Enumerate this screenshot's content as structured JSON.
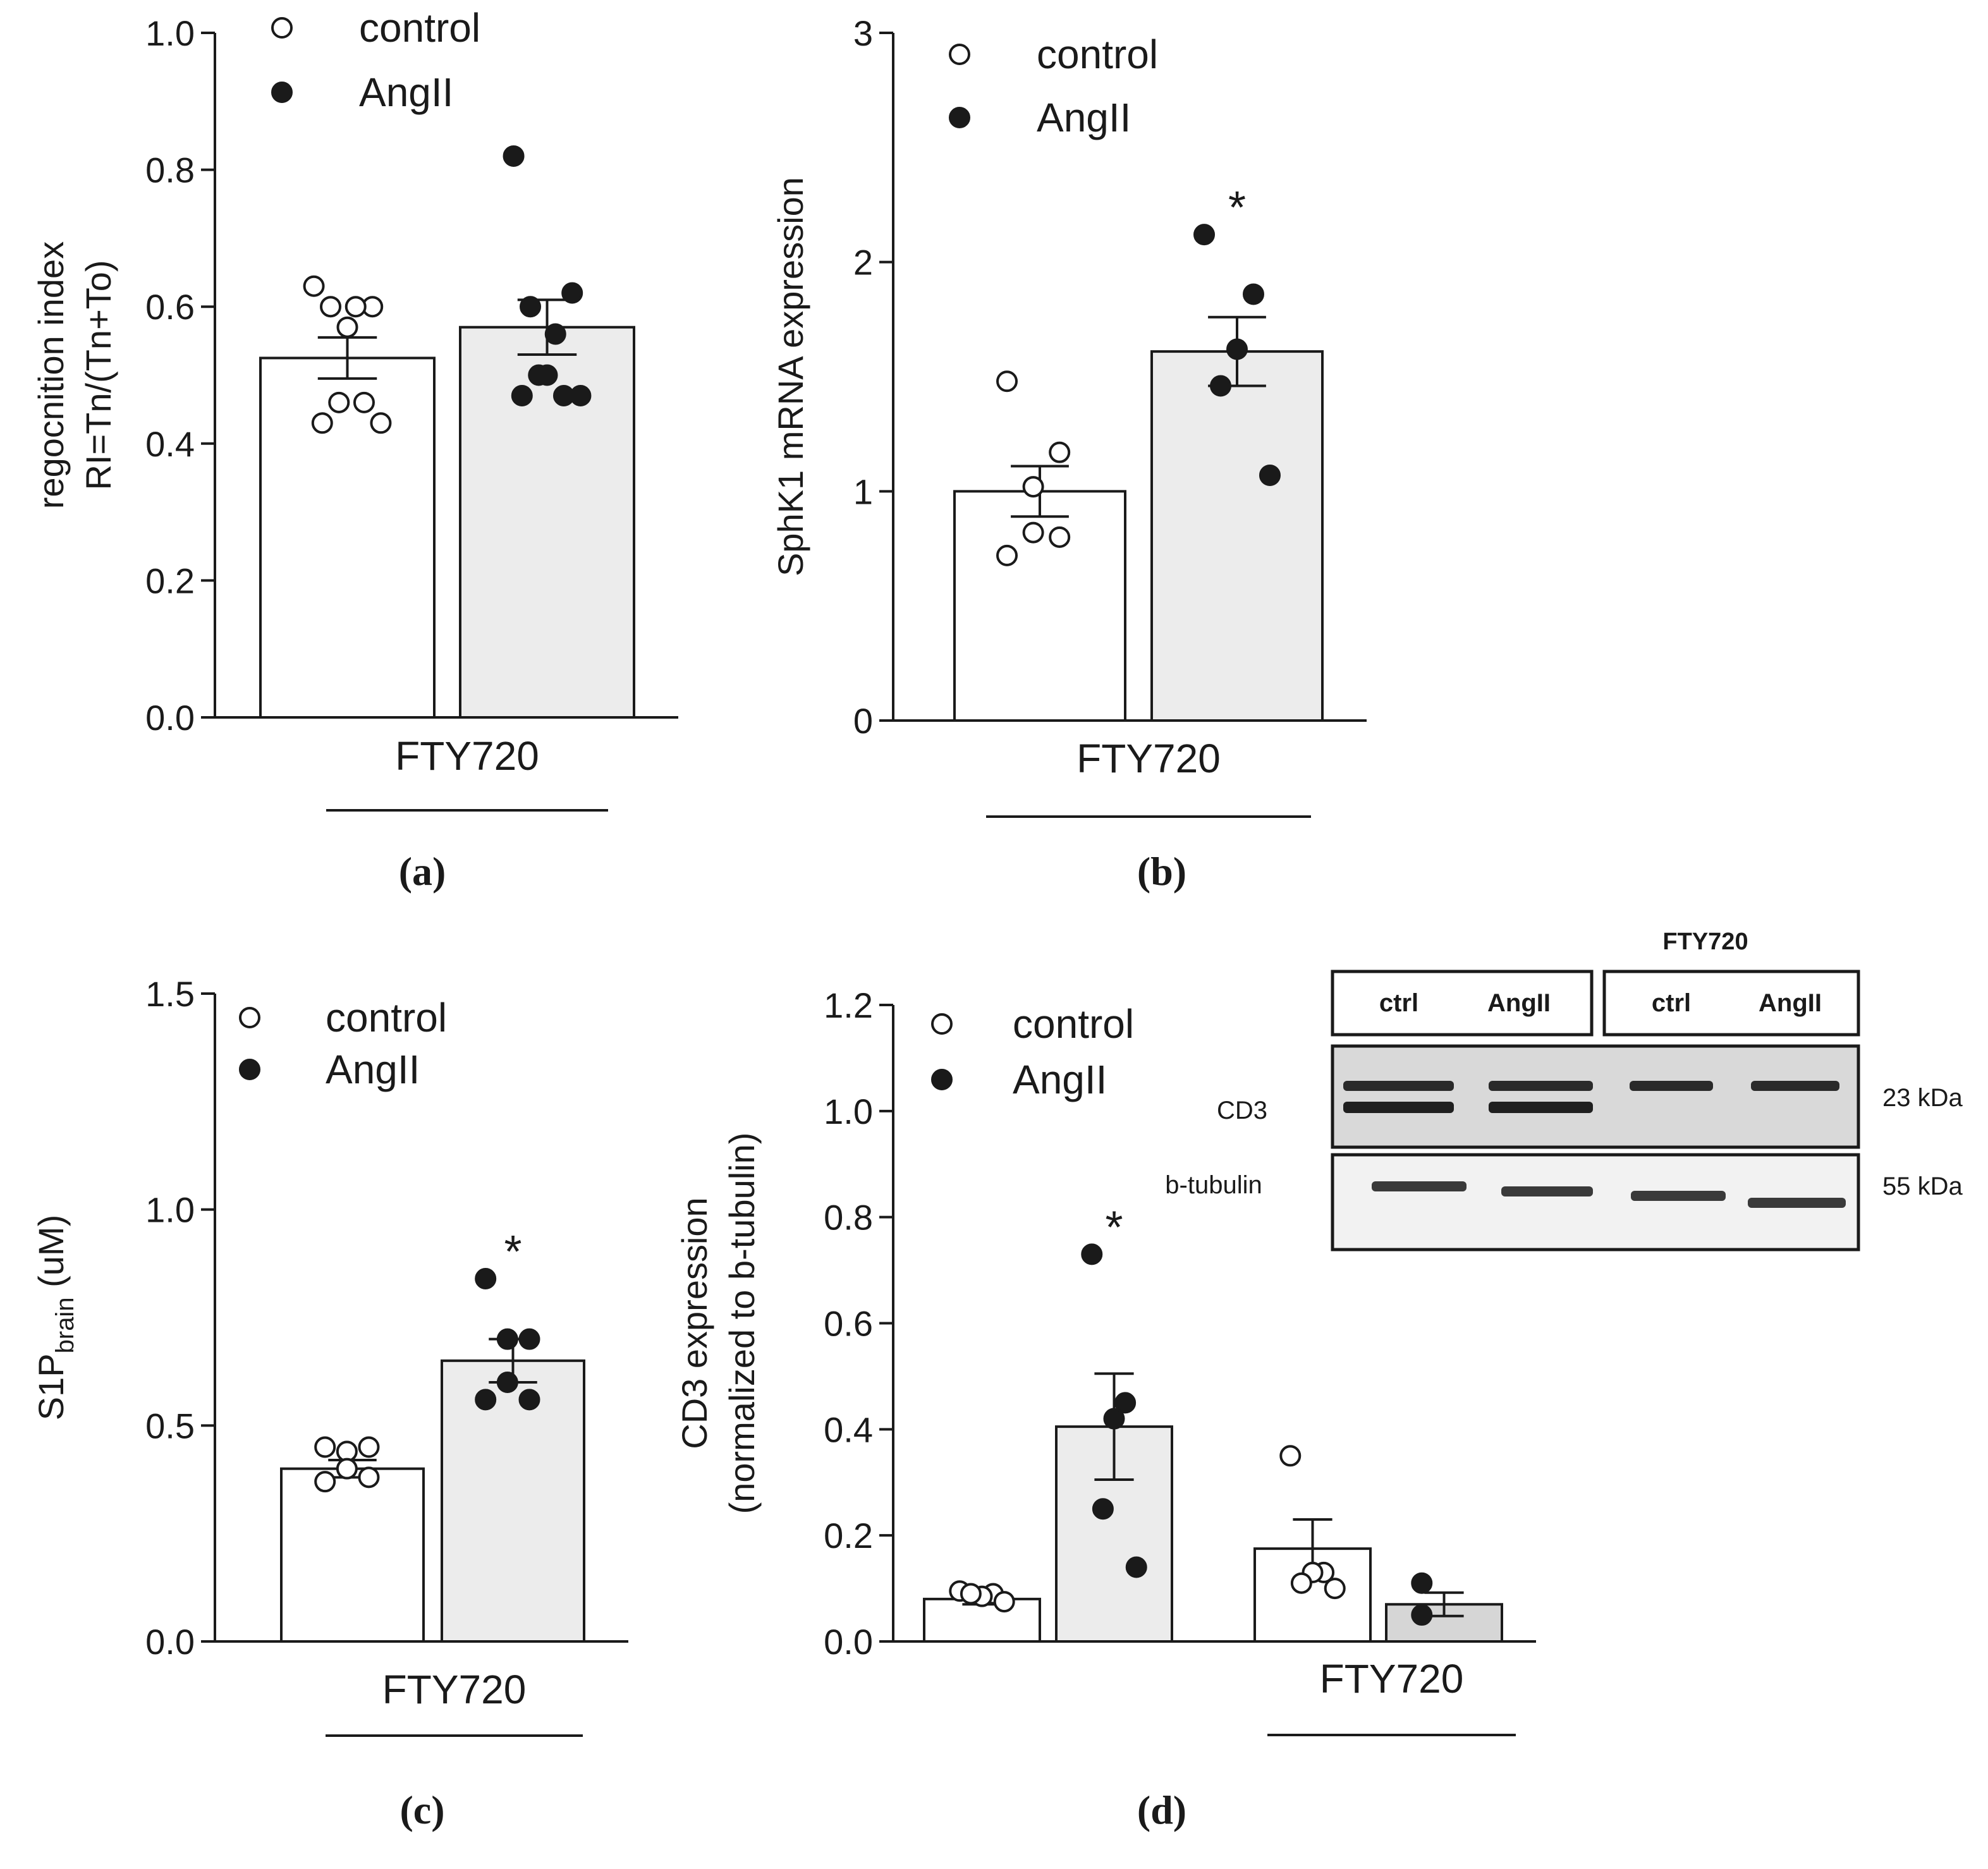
{
  "colors": {
    "ink": "#1a1a1a",
    "control_fill": "#ffffff",
    "angii_fill": "#ececec",
    "angii_fill_d2": "#d6d6d6",
    "point_control": "#ffffff",
    "point_angii": "#1a1a1a"
  },
  "chart_data": [
    {
      "id": "a",
      "type": "bar",
      "panel_label": "(a)",
      "ylabel_lines": [
        "regocnition index",
        "RI=Tn/(Tn+To)"
      ],
      "ylim": [
        0,
        1.0
      ],
      "yticks": [
        "0.0",
        "0.2",
        "0.4",
        "0.6",
        "0.8",
        "1.0"
      ],
      "ytick_values": [
        0,
        0.2,
        0.4,
        0.6,
        0.8,
        1.0
      ],
      "group_label": "FTY720",
      "legend": [
        {
          "label": "control",
          "marker": "open-circle"
        },
        {
          "label": "AngII",
          "marker": "filled-circle"
        }
      ],
      "legend_position": "top-left",
      "bars": [
        {
          "group": "control",
          "mean": 0.525,
          "sem": 0.03,
          "points": [
            0.63,
            0.6,
            0.6,
            0.6,
            0.57,
            0.46,
            0.46,
            0.43,
            0.43
          ],
          "significant": false
        },
        {
          "group": "AngII",
          "mean": 0.57,
          "sem": 0.04,
          "points": [
            0.82,
            0.62,
            0.6,
            0.56,
            0.5,
            0.5,
            0.47,
            0.47,
            0.47
          ],
          "significant": false
        }
      ]
    },
    {
      "id": "b",
      "type": "bar",
      "panel_label": "(b)",
      "ylabel_lines": [
        "SphK1 mRNA expression"
      ],
      "ylim": [
        0,
        3
      ],
      "yticks": [
        "0",
        "1",
        "2",
        "3"
      ],
      "ytick_values": [
        0,
        1,
        2,
        3
      ],
      "group_label": "FTY720",
      "legend": [
        {
          "label": "control",
          "marker": "open-circle"
        },
        {
          "label": "AngII",
          "marker": "filled-circle"
        }
      ],
      "legend_position": "top-left",
      "bars": [
        {
          "group": "control",
          "mean": 1.0,
          "sem": 0.11,
          "points": [
            1.48,
            1.17,
            1.02,
            0.82,
            0.8,
            0.72
          ],
          "significant": false
        },
        {
          "group": "AngII",
          "mean": 1.61,
          "sem": 0.15,
          "points": [
            2.12,
            1.86,
            1.62,
            1.46,
            1.07
          ],
          "significant": true
        }
      ]
    },
    {
      "id": "c",
      "type": "bar",
      "panel_label": "(c)",
      "ylabel": "S1P",
      "ylabel_sub": "brain",
      "ylabel_suffix": " (uM)",
      "ylim": [
        0,
        1.5
      ],
      "yticks": [
        "0.0",
        "0.5",
        "1.0",
        "1.5"
      ],
      "ytick_values": [
        0,
        0.5,
        1.0,
        1.5
      ],
      "group_label": "FTY720",
      "legend": [
        {
          "label": "control",
          "marker": "open-circle"
        },
        {
          "label": "AngII",
          "marker": "filled-circle"
        }
      ],
      "legend_position": "top-left",
      "bars": [
        {
          "group": "control",
          "mean": 0.4,
          "sem": 0.02,
          "points": [
            0.45,
            0.45,
            0.44,
            0.4,
            0.38,
            0.37
          ],
          "significant": false
        },
        {
          "group": "AngII",
          "mean": 0.65,
          "sem": 0.05,
          "points": [
            0.84,
            0.7,
            0.7,
            0.6,
            0.56,
            0.56
          ],
          "significant": true
        }
      ]
    },
    {
      "id": "d",
      "type": "bar",
      "panel_label": "(d)",
      "ylabel_lines": [
        "CD3 expression",
        "(normalized to b-tubulin)"
      ],
      "ylim": [
        0,
        1.2
      ],
      "yticks": [
        "0.0",
        "0.2",
        "0.4",
        "0.6",
        "0.8",
        "1.0",
        "1.2"
      ],
      "ytick_values": [
        0,
        0.2,
        0.4,
        0.6,
        0.8,
        1.0,
        1.2
      ],
      "group_label": "FTY720",
      "legend": [
        {
          "label": "control",
          "marker": "open-circle"
        },
        {
          "label": "AngII",
          "marker": "filled-circle"
        }
      ],
      "legend_position": "top-left",
      "bars": [
        {
          "group": "control",
          "mean": 0.08,
          "sem": 0.01,
          "points": [
            0.095,
            0.09,
            0.085,
            0.09,
            0.075
          ],
          "significant": false
        },
        {
          "group": "AngII",
          "mean": 0.405,
          "sem": 0.1,
          "points": [
            0.73,
            0.45,
            0.42,
            0.25,
            0.14
          ],
          "significant": true
        },
        {
          "group": "control",
          "mean": 0.175,
          "sem": 0.055,
          "points": [
            0.35,
            0.13,
            0.13,
            0.11,
            0.1
          ],
          "significant": false
        },
        {
          "group": "AngII",
          "mean": 0.07,
          "sem": 0.022,
          "points": [
            0.11,
            0.05
          ],
          "significant": false
        }
      ],
      "blot": {
        "header": "FTY720",
        "lanes": [
          "ctrl",
          "AngII",
          "ctrl",
          "AngII"
        ],
        "rows": [
          {
            "label": "CD3",
            "size": "23 kDa"
          },
          {
            "label": "b-tubulin",
            "size": "55 kDa"
          }
        ]
      }
    }
  ]
}
